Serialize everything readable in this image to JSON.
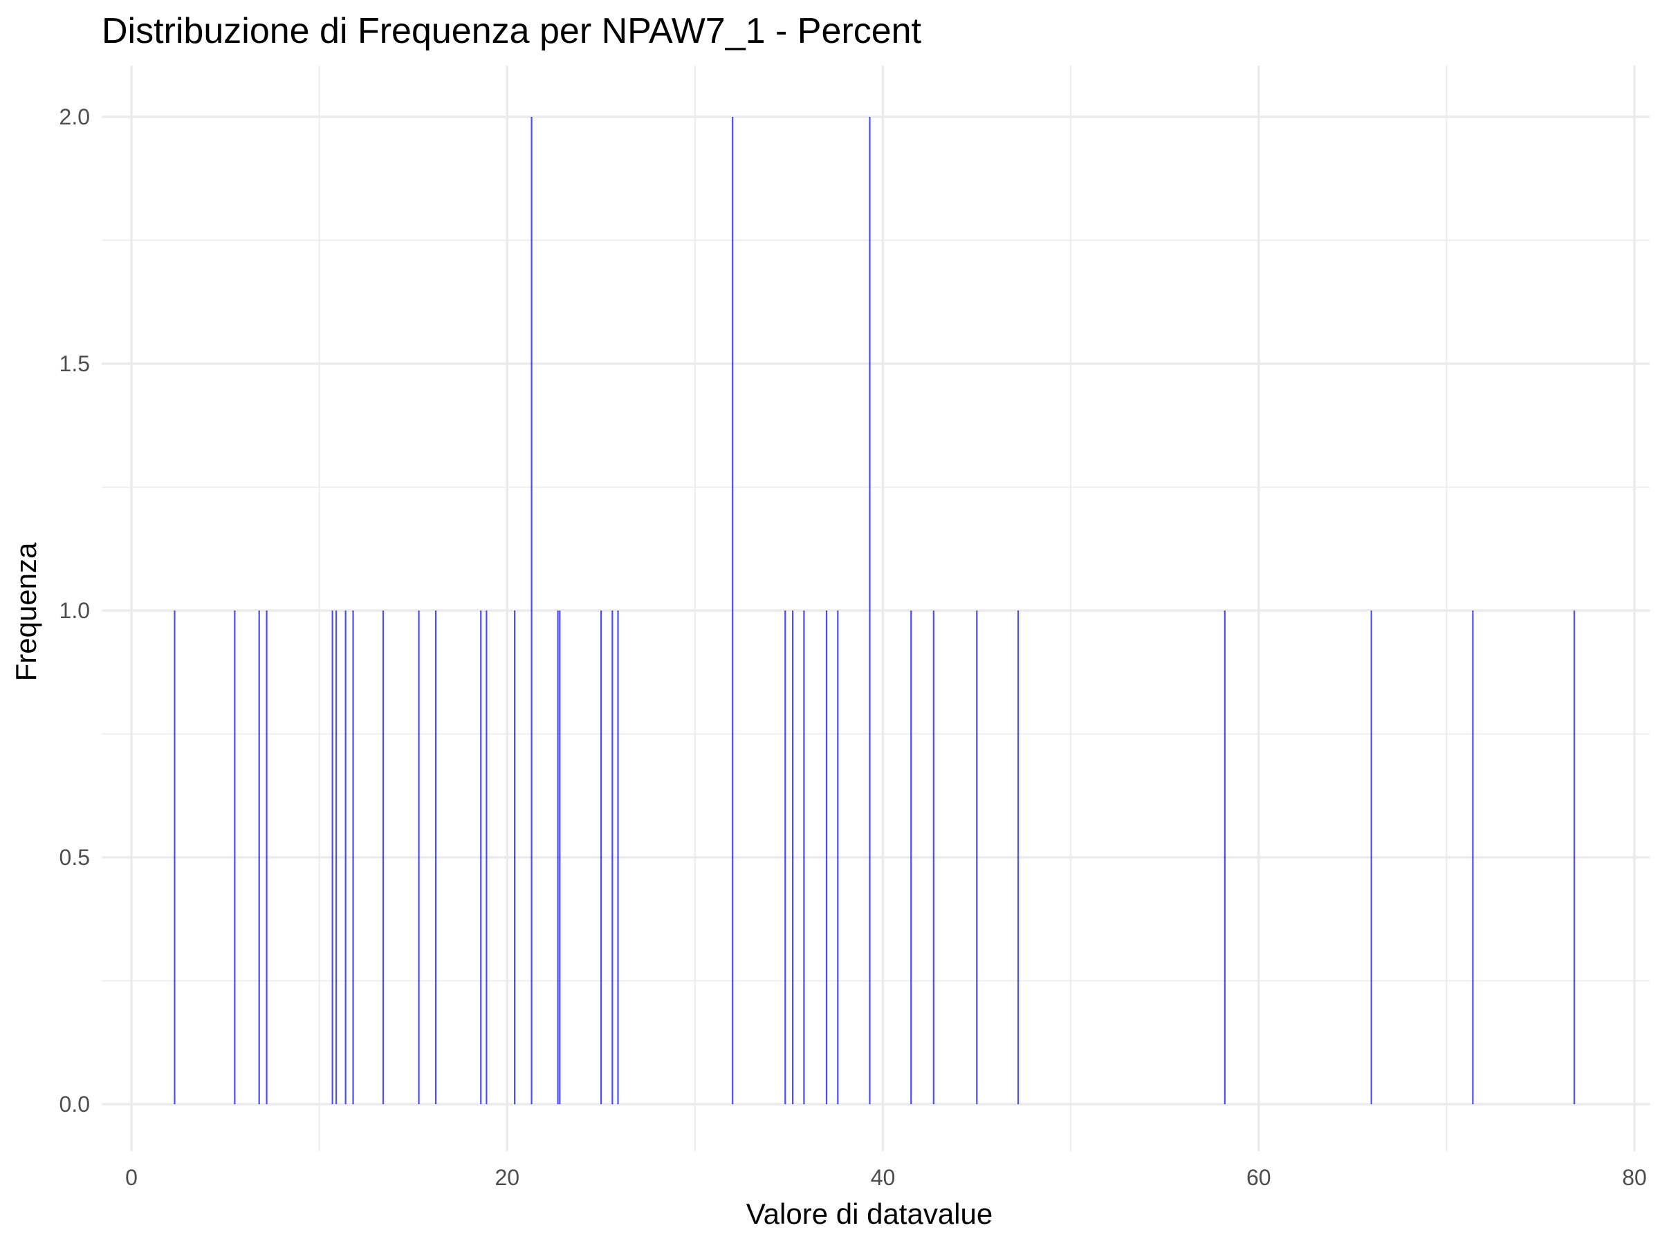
{
  "chart_data": {
    "type": "bar",
    "title": "Distribuzione di Frequenza per NPAW7_1 - Percent",
    "xlabel": "Valore di datavalue",
    "ylabel": "Frequenza",
    "xlim": [
      0,
      80
    ],
    "ylim": [
      0,
      2
    ],
    "x_ticks": [
      0,
      20,
      40,
      60,
      80
    ],
    "x_tick_labels": [
      "0",
      "20",
      "40",
      "60",
      "80"
    ],
    "y_ticks": [
      0,
      0.5,
      1,
      1.5,
      2
    ],
    "y_tick_labels": [
      "0.0",
      "0.5",
      "1.0",
      "1.5",
      "2.0"
    ],
    "grid": true,
    "bar_color": "#0000ff",
    "x": [
      2.3,
      5.5,
      6.8,
      7.2,
      10.7,
      10.9,
      11.4,
      11.8,
      13.4,
      15.3,
      16.2,
      18.6,
      18.9,
      20.4,
      21.3,
      22.7,
      22.8,
      25.0,
      25.6,
      25.9,
      32.0,
      34.8,
      35.2,
      35.8,
      37.0,
      37.6,
      39.3,
      41.5,
      42.7,
      45.0,
      47.2,
      58.2,
      66.0,
      71.4,
      76.8
    ],
    "values": [
      1,
      1,
      1,
      1,
      1,
      1,
      1,
      1,
      1,
      1,
      1,
      1,
      1,
      1,
      2,
      1,
      1,
      1,
      1,
      1,
      2,
      1,
      1,
      1,
      1,
      1,
      2,
      1,
      1,
      1,
      1,
      1,
      1,
      1,
      1
    ]
  }
}
